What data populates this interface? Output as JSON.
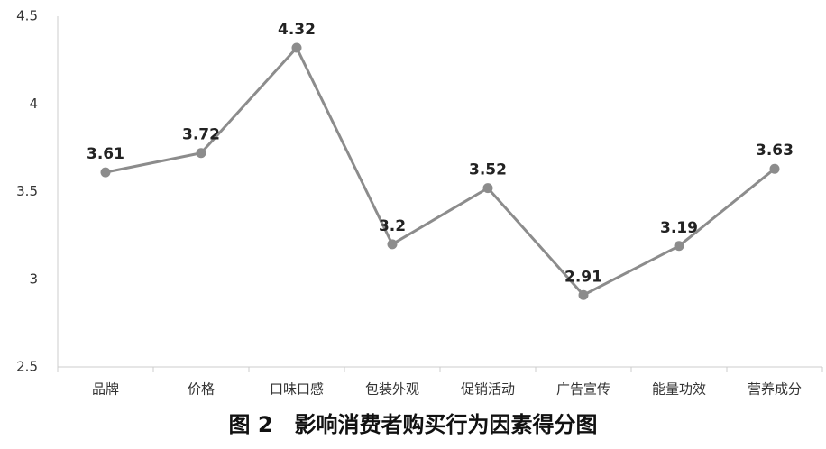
{
  "chart_data": {
    "type": "line",
    "title": "图 2　影响消费者购买行为因素得分图",
    "categories": [
      "品牌",
      "价格",
      "口味口感",
      "包装外观",
      "促销活动",
      "广告宣传",
      "能量功效",
      "营养成分"
    ],
    "values": [
      3.61,
      3.72,
      4.32,
      3.2,
      3.52,
      2.91,
      3.19,
      3.63
    ],
    "color": "#8c8c8c",
    "ylim": [
      2.5,
      4.5
    ],
    "yticks": [
      2.5,
      3,
      3.5,
      4,
      4.5
    ],
    "grid": false
  }
}
